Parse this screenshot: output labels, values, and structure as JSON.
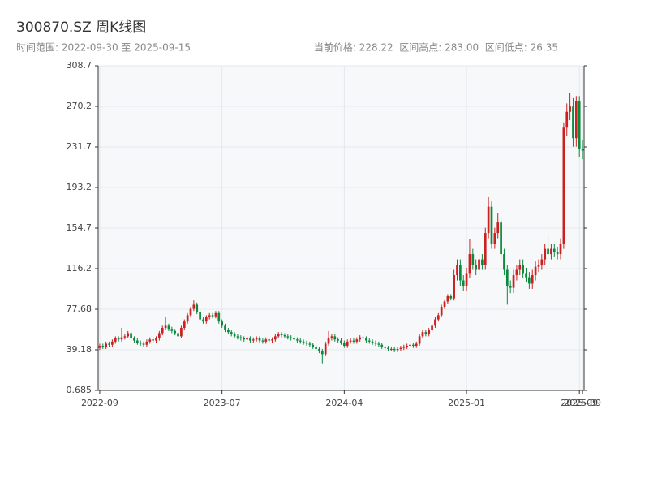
{
  "chart_data": {
    "type": "candlestick",
    "title": "300870.SZ 周K线图",
    "subtitle": "时间范围: 2022-09-30 至 2025-09-15",
    "summary": "当前价格: 228.22  区间高点: 283.00  区间低点: 26.35",
    "up_color": "#cc1f1f",
    "down_color": "#0b8a3e",
    "grid": true,
    "ylim": [
      0.685,
      308.7
    ],
    "yticks": [
      0.685,
      39.18,
      77.68,
      116.2,
      154.7,
      193.2,
      231.7,
      270.2,
      308.7
    ],
    "categories": [
      "2022-09",
      null,
      null,
      null,
      null,
      null,
      null,
      null,
      null,
      null,
      null,
      null,
      null,
      null,
      null,
      null,
      null,
      null,
      null,
      null,
      null,
      null,
      null,
      null,
      null,
      null,
      null,
      null,
      null,
      null,
      null,
      null,
      null,
      null,
      null,
      null,
      null,
      null,
      null,
      "2023-07",
      null,
      null,
      null,
      null,
      null,
      null,
      null,
      null,
      null,
      null,
      null,
      null,
      null,
      null,
      null,
      null,
      null,
      null,
      null,
      null,
      null,
      null,
      null,
      null,
      null,
      null,
      null,
      null,
      null,
      null,
      null,
      null,
      null,
      null,
      null,
      null,
      null,
      null,
      "2024-04",
      null,
      null,
      null,
      null,
      null,
      null,
      null,
      null,
      null,
      null,
      null,
      null,
      null,
      null,
      null,
      null,
      null,
      null,
      null,
      null,
      null,
      null,
      null,
      null,
      null,
      null,
      null,
      null,
      null,
      null,
      null,
      null,
      null,
      null,
      null,
      null,
      null,
      null,
      "2025-01",
      null,
      null,
      null,
      null,
      null,
      null,
      null,
      null,
      null,
      null,
      null,
      null,
      null,
      null,
      null,
      null,
      null,
      null,
      null,
      null,
      null,
      null,
      null,
      null,
      null,
      null,
      null,
      null,
      null,
      null,
      null,
      null,
      null,
      null,
      null,
      "2025-09",
      "2025-09"
    ],
    "open": [
      41,
      43,
      42,
      45,
      44,
      47,
      50,
      49,
      51,
      52,
      55,
      50,
      48,
      46,
      45,
      44,
      47,
      49,
      48,
      50,
      55,
      60,
      62,
      59,
      57,
      55,
      52,
      60,
      66,
      72,
      78,
      82,
      75,
      68,
      66,
      70,
      72,
      71,
      74,
      66,
      62,
      58,
      56,
      54,
      52,
      51,
      50,
      49,
      50,
      48,
      49,
      50,
      48,
      47,
      49,
      48,
      49,
      52,
      54,
      53,
      52,
      51,
      50,
      49,
      48,
      47,
      46,
      45,
      44,
      42,
      40,
      38,
      35,
      45,
      50,
      52,
      49,
      48,
      46,
      43,
      47,
      48,
      47,
      49,
      51,
      50,
      48,
      47,
      46,
      45,
      44,
      42,
      41,
      40,
      40,
      39,
      40,
      41,
      42,
      43,
      44,
      43,
      45,
      52,
      56,
      54,
      58,
      62,
      68,
      72,
      80,
      85,
      90,
      88,
      110,
      120,
      105,
      100,
      112,
      130,
      120,
      115,
      125,
      120,
      150,
      175,
      140,
      150,
      160,
      130,
      115,
      100,
      98,
      110,
      115,
      120,
      112,
      108,
      102,
      110,
      118,
      120,
      125,
      135,
      130,
      135,
      132,
      130,
      140,
      250,
      265,
      270,
      240,
      275,
      230
    ],
    "high": [
      45,
      45,
      47,
      47,
      49,
      52,
      52,
      60,
      54,
      57,
      57,
      52,
      50,
      48,
      47,
      49,
      51,
      51,
      52,
      57,
      62,
      70,
      64,
      61,
      59,
      57,
      62,
      68,
      74,
      80,
      86,
      84,
      77,
      70,
      72,
      74,
      74,
      76,
      76,
      68,
      64,
      60,
      58,
      56,
      54,
      53,
      52,
      52,
      52,
      51,
      52,
      52,
      50,
      51,
      51,
      51,
      54,
      56,
      56,
      55,
      54,
      53,
      52,
      51,
      50,
      49,
      48,
      47,
      46,
      44,
      42,
      40,
      47,
      57,
      54,
      54,
      51,
      50,
      48,
      49,
      50,
      50,
      51,
      53,
      53,
      52,
      50,
      49,
      48,
      47,
      46,
      44,
      43,
      42,
      42,
      42,
      43,
      44,
      45,
      46,
      46,
      47,
      54,
      58,
      58,
      60,
      64,
      70,
      74,
      82,
      87,
      92,
      92,
      115,
      125,
      125,
      110,
      117,
      144,
      135,
      125,
      130,
      130,
      155,
      184,
      180,
      155,
      169,
      165,
      135,
      120,
      105,
      115,
      120,
      125,
      125,
      117,
      113,
      115,
      123,
      125,
      130,
      140,
      149,
      140,
      140,
      137,
      145,
      255,
      273,
      283,
      278,
      280,
      280,
      238
    ],
    "low": [
      39,
      40,
      40,
      42,
      42,
      45,
      47,
      47,
      49,
      50,
      48,
      46,
      44,
      43,
      42,
      42,
      45,
      46,
      46,
      48,
      53,
      58,
      57,
      55,
      53,
      50,
      50,
      58,
      64,
      70,
      76,
      73,
      66,
      64,
      64,
      68,
      69,
      69,
      64,
      60,
      56,
      54,
      52,
      50,
      49,
      48,
      47,
      47,
      46,
      46,
      47,
      46,
      45,
      45,
      46,
      46,
      47,
      50,
      51,
      50,
      49,
      48,
      47,
      46,
      45,
      44,
      43,
      42,
      40,
      38,
      36,
      26.35,
      33,
      43,
      48,
      47,
      46,
      44,
      41,
      41,
      45,
      45,
      45,
      47,
      48,
      46,
      45,
      44,
      43,
      42,
      40,
      39,
      38,
      38,
      37,
      37,
      38,
      39,
      40,
      41,
      41,
      41,
      43,
      50,
      52,
      52,
      56,
      60,
      66,
      70,
      78,
      83,
      86,
      86,
      105,
      100,
      95,
      95,
      107,
      115,
      110,
      110,
      115,
      115,
      145,
      135,
      135,
      145,
      125,
      110,
      82,
      93,
      93,
      105,
      110,
      107,
      103,
      97,
      97,
      105,
      113,
      115,
      120,
      125,
      125,
      127,
      125,
      125,
      135,
      242,
      257,
      232,
      232,
      222,
      220
    ],
    "close": [
      43,
      42,
      45,
      44,
      47,
      50,
      49,
      51,
      52,
      55,
      50,
      48,
      46,
      45,
      44,
      47,
      49,
      48,
      50,
      55,
      60,
      62,
      59,
      57,
      55,
      52,
      60,
      66,
      72,
      78,
      82,
      75,
      68,
      66,
      70,
      72,
      71,
      74,
      66,
      62,
      58,
      56,
      54,
      52,
      51,
      50,
      49,
      50,
      48,
      49,
      50,
      48,
      47,
      49,
      48,
      49,
      52,
      54,
      53,
      52,
      51,
      50,
      49,
      48,
      47,
      46,
      45,
      44,
      42,
      40,
      38,
      35,
      45,
      50,
      52,
      49,
      48,
      46,
      43,
      47,
      48,
      47,
      49,
      51,
      50,
      48,
      47,
      46,
      45,
      44,
      42,
      41,
      40,
      40,
      39,
      40,
      41,
      42,
      43,
      44,
      43,
      45,
      52,
      56,
      54,
      58,
      62,
      68,
      72,
      80,
      85,
      90,
      88,
      110,
      120,
      105,
      100,
      112,
      130,
      120,
      115,
      125,
      120,
      150,
      175,
      140,
      150,
      160,
      130,
      115,
      100,
      98,
      110,
      115,
      120,
      112,
      108,
      102,
      110,
      118,
      120,
      125,
      135,
      130,
      135,
      132,
      130,
      140,
      250,
      265,
      270,
      240,
      275,
      230,
      228.22
    ]
  }
}
